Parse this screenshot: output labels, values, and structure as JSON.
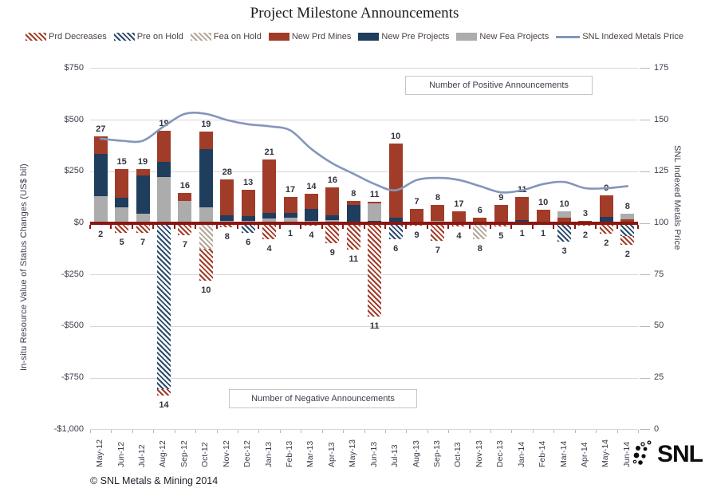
{
  "title": "Project Milestone Announcements",
  "footer": "© SNL Metals & Mining 2014",
  "logo": {
    "text": "SNL"
  },
  "annotations": {
    "positive": "Number of Positive Announcements",
    "negative": "Number of Negative Announcements"
  },
  "left_axis": {
    "title": "In-situ Resource Value of Status Changes (US$ bil)",
    "ticks": [
      "$750",
      "$500",
      "$250",
      "$0",
      "-$250",
      "-$500",
      "-$750",
      "-$1,000"
    ],
    "values": [
      750,
      500,
      250,
      0,
      -250,
      -500,
      -750,
      -1000
    ]
  },
  "right_axis": {
    "title": "SNL Indexed Metals Price",
    "ticks": [
      "175",
      "150",
      "125",
      "100",
      "75",
      "50",
      "25",
      "0"
    ],
    "values": [
      175,
      150,
      125,
      100,
      75,
      50,
      25,
      0
    ]
  },
  "legend": [
    {
      "label": "Prd Decreases",
      "series": "prd_dec"
    },
    {
      "label": "Pre on Hold",
      "series": "pre_hold"
    },
    {
      "label": "Fea on Hold",
      "series": "fea_hold"
    },
    {
      "label": "New Prd Mines",
      "series": "prd"
    },
    {
      "label": "New Pre Projects",
      "series": "pre"
    },
    {
      "label": "New Fea Projects",
      "series": "fea"
    },
    {
      "label": "SNL Indexed Metals Price",
      "series": "line"
    }
  ],
  "chart_data": {
    "type": "stacked-bar+line",
    "units": "US$ bil (bars, left axis) / index (line, right axis)",
    "ylim_left": [
      -1000,
      750
    ],
    "ylim_right": [
      0,
      175
    ],
    "grid": true,
    "series_styles": {
      "prd": {
        "color": "#a13c28",
        "hatch": false
      },
      "pre": {
        "color": "#1f3d5c",
        "hatch": false
      },
      "fea": {
        "color": "#acacac",
        "hatch": false
      },
      "prd_dec": {
        "color": "#a13c28",
        "hatch": true
      },
      "pre_hold": {
        "color": "#2c4a6d",
        "hatch": true
      },
      "fea_hold": {
        "color": "#b3a697",
        "hatch": true
      },
      "line": {
        "color": "#8496bb"
      }
    },
    "months": [
      {
        "cat": "May-12",
        "pos_label": 27,
        "neg_label": 2,
        "pos": [
          [
            "fea",
            130
          ],
          [
            "pre",
            205
          ],
          [
            "prd",
            85
          ]
        ],
        "neg": [
          [
            "prd_dec",
            8
          ]
        ],
        "price": 141
      },
      {
        "cat": "Jun-12",
        "pos_label": 15,
        "neg_label": 5,
        "pos": [
          [
            "fea",
            77
          ],
          [
            "pre",
            47
          ],
          [
            "prd",
            139
          ]
        ],
        "neg": [
          [
            "prd_dec",
            45
          ]
        ],
        "price": 140
      },
      {
        "cat": "Jul-12",
        "pos_label": 19,
        "neg_label": 7,
        "pos": [
          [
            "fea",
            46
          ],
          [
            "pre",
            185
          ],
          [
            "prd",
            31
          ]
        ],
        "neg": [
          [
            "prd_dec",
            46
          ]
        ],
        "price": 140
      },
      {
        "cat": "Aug-12",
        "pos_label": 19,
        "neg_label": 14,
        "pos": [
          [
            "fea",
            224
          ],
          [
            "pre",
            73
          ],
          [
            "prd",
            150
          ]
        ],
        "neg": [
          [
            "pre_hold",
            805
          ],
          [
            "prd_dec",
            30
          ]
        ],
        "price": 147
      },
      {
        "cat": "Sep-12",
        "pos_label": 16,
        "neg_label": 7,
        "pos": [
          [
            "fea",
            108
          ],
          [
            "prd",
            39
          ]
        ],
        "neg": [
          [
            "prd_dec",
            58
          ]
        ],
        "price": 153
      },
      {
        "cat": "Oct-12",
        "pos_label": 19,
        "neg_label": 10,
        "pos": [
          [
            "fea",
            77
          ],
          [
            "pre",
            282
          ],
          [
            "prd",
            85
          ]
        ],
        "neg": [
          [
            "fea_hold",
            123
          ],
          [
            "prd_dec",
            155
          ]
        ],
        "price": 153
      },
      {
        "cat": "Nov-12",
        "pos_label": 28,
        "neg_label": 8,
        "pos": [
          [
            "fea",
            12
          ],
          [
            "pre",
            27
          ],
          [
            "prd",
            173
          ]
        ],
        "neg": [
          [
            "prd_dec",
            20
          ]
        ],
        "price": 150
      },
      {
        "cat": "Dec-12",
        "pos_label": 13,
        "neg_label": 6,
        "pos": [
          [
            "fea",
            12
          ],
          [
            "pre",
            23
          ],
          [
            "prd",
            127
          ]
        ],
        "neg": [
          [
            "pre_hold",
            46
          ]
        ],
        "price": 148
      },
      {
        "cat": "Jan-13",
        "pos_label": 21,
        "neg_label": 4,
        "pos": [
          [
            "fea",
            23
          ],
          [
            "pre",
            27
          ],
          [
            "prd",
            259
          ]
        ],
        "neg": [
          [
            "prd_dec",
            77
          ]
        ],
        "price": 147
      },
      {
        "cat": "Feb-13",
        "pos_label": 17,
        "neg_label": 1,
        "pos": [
          [
            "fea",
            27
          ],
          [
            "pre",
            23
          ],
          [
            "prd",
            77
          ]
        ],
        "neg": [
          [
            "prd_dec",
            5
          ]
        ],
        "price": 145
      },
      {
        "cat": "Mar-13",
        "pos_label": 14,
        "neg_label": 4,
        "pos": [
          [
            "fea",
            12
          ],
          [
            "pre",
            57
          ],
          [
            "prd",
            74
          ]
        ],
        "neg": [
          [
            "prd_dec",
            12
          ]
        ],
        "price": 136
      },
      {
        "cat": "Apr-13",
        "pos_label": 16,
        "neg_label": 9,
        "pos": [
          [
            "fea",
            15
          ],
          [
            "pre",
            24
          ],
          [
            "prd",
            135
          ]
        ],
        "neg": [
          [
            "prd_dec",
            96
          ]
        ],
        "price": 129
      },
      {
        "cat": "May-13",
        "pos_label": 8,
        "neg_label": 11,
        "pos": [
          [
            "fea",
            8
          ],
          [
            "pre",
            81
          ],
          [
            "prd",
            19
          ]
        ],
        "neg": [
          [
            "prd_dec",
            127
          ]
        ],
        "price": 124
      },
      {
        "cat": "Jun-13",
        "pos_label": 11,
        "neg_label": 11,
        "pos": [
          [
            "pre",
            12
          ],
          [
            "fea",
            85
          ],
          [
            "prd",
            8
          ]
        ],
        "neg": [
          [
            "prd_dec",
            452
          ]
        ],
        "price": 119
      },
      {
        "cat": "Jul-13",
        "pos_label": 10,
        "neg_label": 6,
        "pos": [
          [
            "pre",
            27
          ],
          [
            "prd",
            359
          ]
        ],
        "neg": [
          [
            "pre_hold",
            77
          ]
        ],
        "price": 116
      },
      {
        "cat": "Aug-13",
        "pos_label": 7,
        "neg_label": 9,
        "pos": [
          [
            "prd",
            69
          ]
        ],
        "neg": [
          [
            "prd_dec",
            10
          ]
        ],
        "price": 121
      },
      {
        "cat": "Sep-13",
        "pos_label": 8,
        "neg_label": 7,
        "pos": [
          [
            "fea",
            12
          ],
          [
            "prd",
            77
          ]
        ],
        "neg": [
          [
            "prd_dec",
            85
          ]
        ],
        "price": 122
      },
      {
        "cat": "Oct-13",
        "pos_label": 17,
        "neg_label": 4,
        "pos": [
          [
            "pre",
            8
          ],
          [
            "prd",
            50
          ]
        ],
        "neg": [
          [
            "prd_dec",
            15
          ]
        ],
        "price": 121
      },
      {
        "cat": "Nov-13",
        "pos_label": 6,
        "neg_label": 8,
        "pos": [
          [
            "prd",
            27
          ]
        ],
        "neg": [
          [
            "fea_hold",
            77
          ]
        ],
        "price": 118
      },
      {
        "cat": "Dec-13",
        "pos_label": 9,
        "neg_label": 5,
        "pos": [
          [
            "prd",
            89
          ]
        ],
        "neg": [
          [
            "prd_dec",
            15
          ]
        ],
        "price": 115
      },
      {
        "cat": "Jan-14",
        "pos_label": 11,
        "neg_label": 1,
        "pos": [
          [
            "pre",
            15
          ],
          [
            "prd",
            112
          ]
        ],
        "neg": [
          [
            "prd_dec",
            4
          ]
        ],
        "price": 116
      },
      {
        "cat": "Feb-14",
        "pos_label": 10,
        "neg_label": 1,
        "pos": [
          [
            "pre",
            8
          ],
          [
            "prd",
            58
          ]
        ],
        "neg": [
          [
            "prd_dec",
            4
          ]
        ],
        "price": 119
      },
      {
        "cat": "Mar-14",
        "pos_label": 10,
        "neg_label": 3,
        "pos": [
          [
            "prd",
            27
          ],
          [
            "fea",
            31
          ]
        ],
        "neg": [
          [
            "pre_hold",
            89
          ]
        ],
        "price": 120
      },
      {
        "cat": "Apr-14",
        "pos_label": 3,
        "neg_label": 2,
        "pos": [
          [
            "prd",
            12
          ]
        ],
        "neg": [
          [
            "prd_dec",
            10
          ]
        ],
        "price": 117
      },
      {
        "cat": "May-14",
        "pos_label": 9,
        "neg_label": 2,
        "pos": [
          [
            "pre",
            31
          ],
          [
            "prd",
            104
          ]
        ],
        "neg": [
          [
            "prd_dec",
            50
          ]
        ],
        "price": 117
      },
      {
        "cat": "Jun-14",
        "pos_label": 8,
        "neg_label": 2,
        "pos": [
          [
            "prd",
            19
          ],
          [
            "fea",
            27
          ]
        ],
        "neg": [
          [
            "pre_hold",
            60
          ],
          [
            "prd_dec",
            45
          ]
        ],
        "price": 118
      }
    ]
  }
}
